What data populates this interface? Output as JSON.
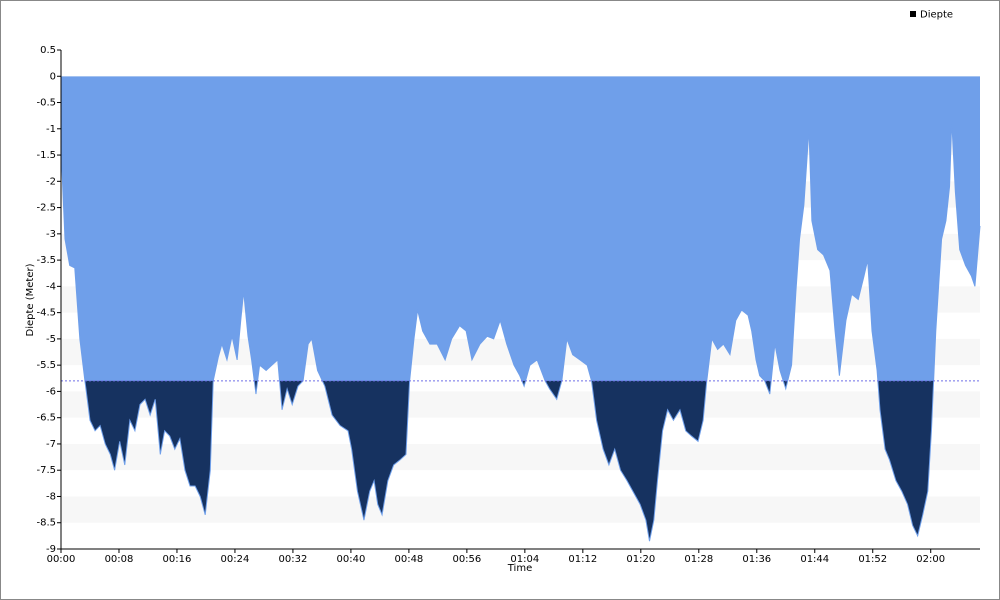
{
  "chart_data": {
    "type": "area",
    "x_label": "Time",
    "y_label": "Diepte (Meter)",
    "legend_position": "top-right",
    "threshold": -5.8,
    "threshold_color": "#6f6fe8",
    "below_color": "#163260",
    "grid_band_color": "#f7f7f7",
    "xlim": [
      0,
      126.8
    ],
    "ylim": [
      -9,
      0.5
    ],
    "xticks": [
      {
        "value": 0,
        "label": "00:00"
      },
      {
        "value": 8,
        "label": "00:08"
      },
      {
        "value": 16,
        "label": "00:16"
      },
      {
        "value": 24,
        "label": "00:24"
      },
      {
        "value": 32,
        "label": "00:32"
      },
      {
        "value": 40,
        "label": "00:40"
      },
      {
        "value": 48,
        "label": "00:48"
      },
      {
        "value": 56,
        "label": "00:56"
      },
      {
        "value": 64,
        "label": "01:04"
      },
      {
        "value": 72,
        "label": "01:12"
      },
      {
        "value": 80,
        "label": "01:20"
      },
      {
        "value": 88,
        "label": "01:28"
      },
      {
        "value": 96,
        "label": "01:36"
      },
      {
        "value": 104,
        "label": "01:44"
      },
      {
        "value": 112,
        "label": "01:52"
      },
      {
        "value": 120,
        "label": "02:00"
      }
    ],
    "yticks": [
      0.5,
      0,
      -0.5,
      -1,
      -1.5,
      -2,
      -2.5,
      -3,
      -3.5,
      -4,
      -4.5,
      -5,
      -5.5,
      -6,
      -6.5,
      -7,
      -7.5,
      -8,
      -8.5,
      -9
    ],
    "series": [
      {
        "name": "Diepte",
        "color": "#6f9fea",
        "x": [
          0,
          0.14,
          0.55,
          1.2,
          1.9,
          2.6,
          3.3,
          4.0,
          4.7,
          5.4,
          6.1,
          6.8,
          7.4,
          8.1,
          8.8,
          9.5,
          10.2,
          10.9,
          11.6,
          12.3,
          13.0,
          13.7,
          14.3,
          15.0,
          15.7,
          16.4,
          17.1,
          17.8,
          18.5,
          19.2,
          19.9,
          20.6,
          21.0,
          21.7,
          22.2,
          22.9,
          23.6,
          24.3,
          24.8,
          25.2,
          25.8,
          26.3,
          26.9,
          27.4,
          28.3,
          29.1,
          29.9,
          30.5,
          31.2,
          31.9,
          32.7,
          33.4,
          34.1,
          34.6,
          35.4,
          36.4,
          37.4,
          38.5,
          39.6,
          40.1,
          40.9,
          41.8,
          42.6,
          43.2,
          43.7,
          44.3,
          45.1,
          45.9,
          46.8,
          47.6,
          48.1,
          48.7,
          49.2,
          49.9,
          50.9,
          51.9,
          53.0,
          53.9,
          55.0,
          55.9,
          56.7,
          57.8,
          58.8,
          59.7,
          60.6,
          61.5,
          62.5,
          63.3,
          63.9,
          64.7,
          65.7,
          66.8,
          67.4,
          68.4,
          69.1,
          69.8,
          70.6,
          71.6,
          72.6,
          73.2,
          73.9,
          74.8,
          75.6,
          76.4,
          77.2,
          78.1,
          78.9,
          79.9,
          80.7,
          81.2,
          81.8,
          82.3,
          83.0,
          83.7,
          84.5,
          85.4,
          86.2,
          87.0,
          87.9,
          88.6,
          89.1,
          89.8,
          90.6,
          91.4,
          92.3,
          93.1,
          93.9,
          94.8,
          95.3,
          95.9,
          96.4,
          97.1,
          97.8,
          98.5,
          99.2,
          100.0,
          100.8,
          101.4,
          101.9,
          102.5,
          103.2,
          103.6,
          104.4,
          105.2,
          106.1,
          106.8,
          107.4,
          108.3,
          109.1,
          110.0,
          110.8,
          111.3,
          111.9,
          112.6,
          113.0,
          113.7,
          114.3,
          115.2,
          116.0,
          116.8,
          117.5,
          118.2,
          118.9,
          119.6,
          120.1,
          120.7,
          121.5,
          122.1,
          122.6,
          122.9,
          123.4,
          124.0,
          124.8,
          125.6,
          126.1,
          126.8
        ],
        "values": [
          0,
          -1.8,
          -3.1,
          -3.6,
          -3.65,
          -5.0,
          -5.8,
          -6.55,
          -6.75,
          -6.65,
          -7.0,
          -7.2,
          -7.5,
          -6.95,
          -7.4,
          -6.55,
          -6.75,
          -6.25,
          -6.15,
          -6.45,
          -6.15,
          -7.2,
          -6.75,
          -6.85,
          -7.1,
          -6.9,
          -7.5,
          -7.8,
          -7.8,
          -8.0,
          -8.35,
          -7.5,
          -5.8,
          -5.35,
          -5.1,
          -5.4,
          -4.95,
          -5.4,
          -4.65,
          -4.1,
          -4.95,
          -5.4,
          -6.05,
          -5.5,
          -5.6,
          -5.5,
          -5.4,
          -6.35,
          -5.95,
          -6.25,
          -5.9,
          -5.8,
          -5.1,
          -5.0,
          -5.6,
          -5.9,
          -6.45,
          -6.65,
          -6.75,
          -7.1,
          -7.9,
          -8.45,
          -7.9,
          -7.7,
          -8.15,
          -8.35,
          -7.7,
          -7.4,
          -7.3,
          -7.2,
          -5.8,
          -5.0,
          -4.45,
          -4.85,
          -5.1,
          -5.1,
          -5.4,
          -5.0,
          -4.75,
          -4.85,
          -5.4,
          -5.1,
          -4.95,
          -5.0,
          -4.65,
          -5.1,
          -5.5,
          -5.7,
          -5.9,
          -5.5,
          -5.4,
          -5.8,
          -5.95,
          -6.15,
          -5.8,
          -5.0,
          -5.3,
          -5.4,
          -5.5,
          -5.8,
          -6.55,
          -7.1,
          -7.4,
          -7.1,
          -7.5,
          -7.7,
          -7.9,
          -8.15,
          -8.45,
          -8.85,
          -8.45,
          -7.7,
          -6.75,
          -6.35,
          -6.55,
          -6.35,
          -6.75,
          -6.85,
          -6.95,
          -6.55,
          -5.8,
          -5.0,
          -5.2,
          -5.1,
          -5.3,
          -4.65,
          -4.45,
          -4.55,
          -4.85,
          -5.4,
          -5.7,
          -5.8,
          -6.05,
          -5.1,
          -5.6,
          -5.95,
          -5.5,
          -4.1,
          -3.1,
          -2.45,
          -1.0,
          -2.75,
          -3.3,
          -3.4,
          -3.7,
          -4.85,
          -5.7,
          -4.65,
          -4.15,
          -4.25,
          -3.8,
          -3.5,
          -4.85,
          -5.6,
          -6.35,
          -7.1,
          -7.3,
          -7.7,
          -7.9,
          -8.15,
          -8.55,
          -8.75,
          -8.35,
          -7.9,
          -6.75,
          -4.85,
          -3.1,
          -2.75,
          -2.1,
          -0.85,
          -2.2,
          -3.3,
          -3.6,
          -3.8,
          -4.0,
          -2.85
        ]
      }
    ]
  }
}
